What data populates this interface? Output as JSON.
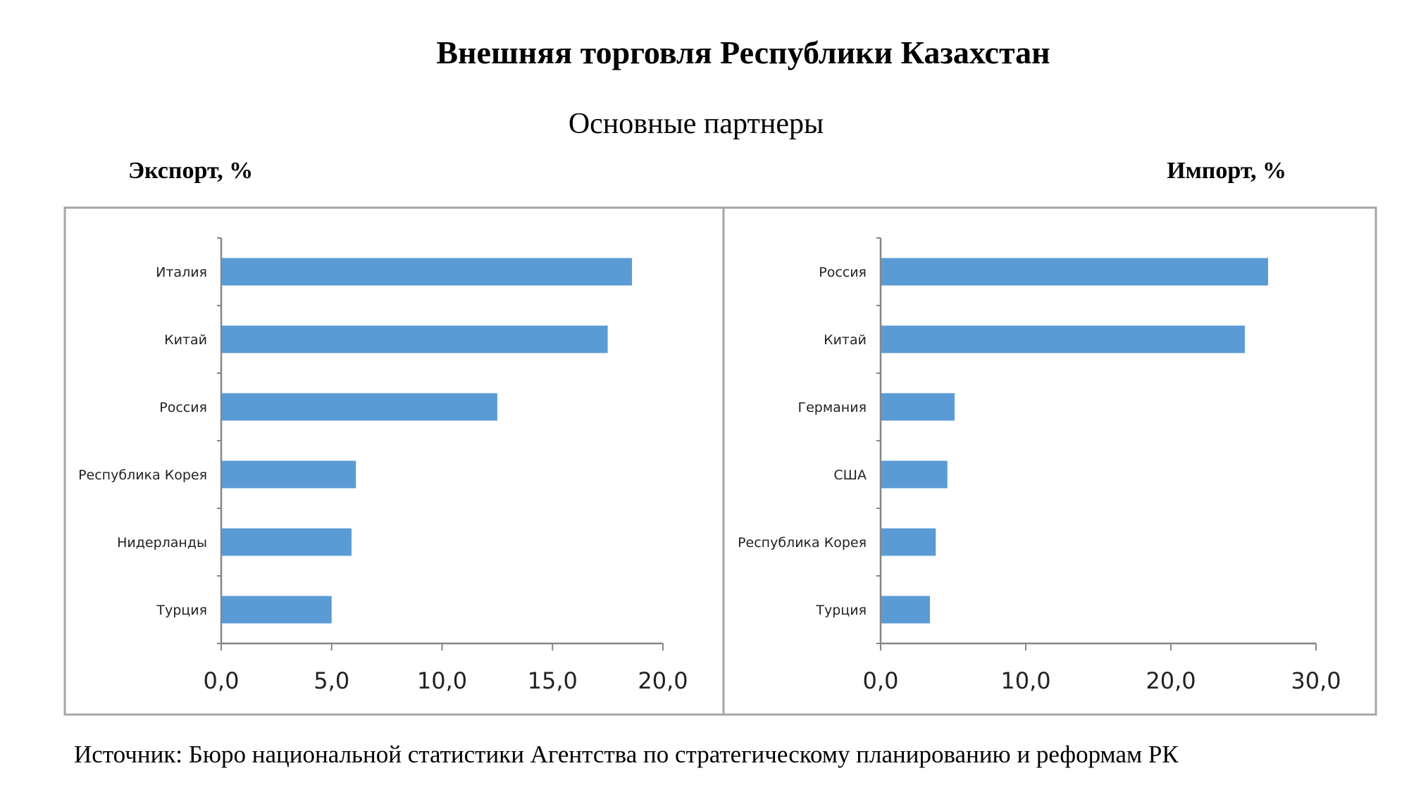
{
  "title": "Внешняя торговля Республики Казахстан",
  "subtitle": "Основные партнеры",
  "source": "Источник: Бюро национальной статистики Агентства по стратегическому планированию и реформам РК",
  "colors": {
    "bar": "#5b9bd5",
    "axis": "#868686",
    "border": "#a6a6a6"
  },
  "chart_data": [
    {
      "type": "bar",
      "orientation": "horizontal",
      "title": "Экспорт, %",
      "categories": [
        "Италия",
        "Китай",
        "Россия",
        "Республика Корея",
        "Нидерланды",
        "Турция"
      ],
      "values": [
        18.6,
        17.5,
        12.5,
        6.1,
        5.9,
        5.0
      ],
      "xlim": [
        0,
        20
      ],
      "xticks": [
        "0,0",
        "5,0",
        "10,0",
        "15,0",
        "20,0"
      ],
      "grid": false
    },
    {
      "type": "bar",
      "orientation": "horizontal",
      "title": "Импорт, %",
      "categories": [
        "Россия",
        "Китай",
        "Германия",
        "США",
        "Республика Корея",
        "Турция"
      ],
      "values": [
        26.7,
        25.1,
        5.1,
        4.6,
        3.8,
        3.4
      ],
      "xlim": [
        0,
        30
      ],
      "xticks": [
        "0,0",
        "10,0",
        "20,0",
        "30,0"
      ],
      "grid": false
    }
  ]
}
